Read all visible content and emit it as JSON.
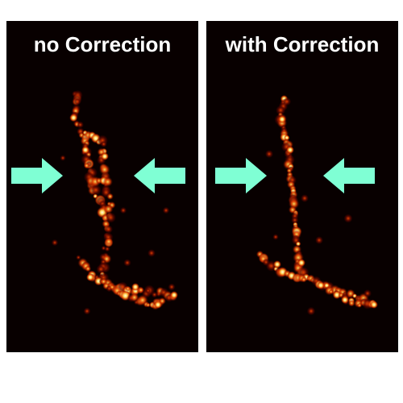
{
  "panels": [
    {
      "id": "left",
      "title": "no Correction",
      "arrow_color": "#7fffd4"
    },
    {
      "id": "right",
      "title": "with Correction",
      "arrow_color": "#7fffd4"
    }
  ],
  "colors": {
    "background": "#080000",
    "hot_low": "#5a0500",
    "hot_mid": "#e03c00",
    "hot_high": "#ffd85a",
    "hot_peak": "#fffbe6"
  }
}
